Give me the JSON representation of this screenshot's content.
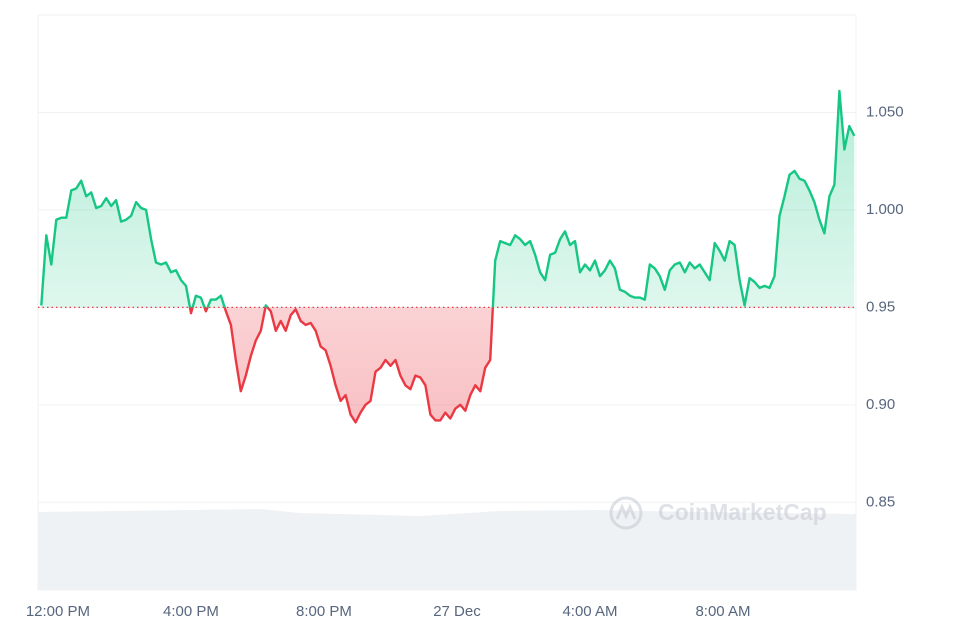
{
  "chart_data": {
    "type": "line",
    "x": [
      -0.5,
      -0.35,
      -0.2,
      -0.05,
      0.1,
      0.25,
      0.4,
      0.55,
      0.7,
      0.85,
      1,
      1.15,
      1.3,
      1.45,
      1.6,
      1.75,
      1.9,
      2.05,
      2.2,
      2.35,
      2.5,
      2.65,
      2.8,
      2.95,
      3.1,
      3.25,
      3.4,
      3.55,
      3.7,
      3.85,
      4,
      4.15,
      4.3,
      4.45,
      4.6,
      4.75,
      4.9,
      5.05,
      5.2,
      5.35,
      5.5,
      5.65,
      5.8,
      5.95,
      6.1,
      6.25,
      6.4,
      6.55,
      6.7,
      6.85,
      7,
      7.15,
      7.3,
      7.45,
      7.6,
      7.75,
      7.9,
      8.05,
      8.2,
      8.35,
      8.5,
      8.65,
      8.8,
      8.95,
      9.1,
      9.25,
      9.4,
      9.55,
      9.7,
      9.85,
      10,
      10.15,
      10.3,
      10.45,
      10.6,
      10.75,
      10.9,
      11.05,
      11.2,
      11.35,
      11.5,
      11.65,
      11.8,
      11.95,
      12.1,
      12.25,
      12.4,
      12.55,
      12.7,
      12.85,
      13,
      13.15,
      13.3,
      13.45,
      13.6,
      13.75,
      13.9,
      14.05,
      14.2,
      14.35,
      14.5,
      14.65,
      14.8,
      14.95,
      15.1,
      15.25,
      15.4,
      15.55,
      15.7,
      15.85,
      16,
      16.15,
      16.3,
      16.45,
      16.6,
      16.75,
      16.9,
      17.05,
      17.2,
      17.35,
      17.5,
      17.65,
      17.8,
      17.95,
      18.1,
      18.25,
      18.4,
      18.55,
      18.7,
      18.85,
      19,
      19.15,
      19.3,
      19.45,
      19.6,
      19.75,
      19.9,
      20.05,
      20.2,
      20.35,
      20.5,
      20.65,
      20.8,
      20.95,
      21.1,
      21.25,
      21.4,
      21.55,
      21.7,
      21.85,
      22,
      22.15,
      22.3,
      22.45,
      22.6,
      22.75,
      22.9,
      23.05,
      23.2,
      23.35,
      23.5,
      23.65,
      23.8,
      23.95
    ],
    "values": [
      0.951,
      0.987,
      0.972,
      0.995,
      0.996,
      0.996,
      1.01,
      1.011,
      1.015,
      1.007,
      1.009,
      1.001,
      1.002,
      1.006,
      1.002,
      1.005,
      0.994,
      0.995,
      0.997,
      1.004,
      1.001,
      1.0,
      0.985,
      0.973,
      0.972,
      0.973,
      0.968,
      0.969,
      0.964,
      0.961,
      0.947,
      0.956,
      0.955,
      0.948,
      0.954,
      0.954,
      0.956,
      0.948,
      0.941,
      0.923,
      0.907,
      0.915,
      0.925,
      0.933,
      0.938,
      0.951,
      0.948,
      0.938,
      0.943,
      0.938,
      0.946,
      0.949,
      0.943,
      0.941,
      0.942,
      0.938,
      0.93,
      0.928,
      0.92,
      0.91,
      0.902,
      0.905,
      0.895,
      0.891,
      0.896,
      0.9,
      0.902,
      0.917,
      0.919,
      0.923,
      0.92,
      0.923,
      0.915,
      0.91,
      0.908,
      0.915,
      0.914,
      0.91,
      0.895,
      0.892,
      0.892,
      0.896,
      0.893,
      0.898,
      0.9,
      0.897,
      0.905,
      0.91,
      0.907,
      0.919,
      0.923,
      0.974,
      0.984,
      0.983,
      0.982,
      0.987,
      0.985,
      0.982,
      0.984,
      0.977,
      0.968,
      0.964,
      0.977,
      0.978,
      0.985,
      0.989,
      0.982,
      0.984,
      0.968,
      0.972,
      0.969,
      0.974,
      0.966,
      0.969,
      0.974,
      0.97,
      0.959,
      0.958,
      0.956,
      0.955,
      0.955,
      0.954,
      0.972,
      0.97,
      0.966,
      0.959,
      0.969,
      0.972,
      0.973,
      0.968,
      0.973,
      0.97,
      0.972,
      0.968,
      0.964,
      0.983,
      0.979,
      0.974,
      0.984,
      0.982,
      0.964,
      0.951,
      0.965,
      0.963,
      0.96,
      0.961,
      0.96,
      0.966,
      0.997,
      1.007,
      1.018,
      1.02,
      1.016,
      1.015,
      1.01,
      1.004,
      0.995,
      0.988,
      1.007,
      1.013,
      1.061,
      1.031,
      1.043,
      1.038
    ],
    "baseline": 0.95,
    "up_color": "#16c784",
    "down_color": "#ea3943",
    "xlim": [
      -0.6,
      24.0
    ],
    "xticks": [
      {
        "value": 0,
        "label": "12:00 PM"
      },
      {
        "value": 4,
        "label": "4:00 PM"
      },
      {
        "value": 8,
        "label": "8:00 PM"
      },
      {
        "value": 12,
        "label": "27 Dec"
      },
      {
        "value": 16,
        "label": "4:00 AM"
      },
      {
        "value": 20,
        "label": "8:00 AM"
      }
    ],
    "ylim": [
      0.805,
      1.1
    ],
    "yticks": [
      0.85,
      {
        "value": 0.9,
        "label": "0.90"
      },
      0.95,
      {
        "value": 1.0,
        "label": "1.000"
      },
      {
        "value": 1.05,
        "label": "1.050"
      }
    ],
    "grid": true,
    "watermark": "CoinMarketCap"
  }
}
